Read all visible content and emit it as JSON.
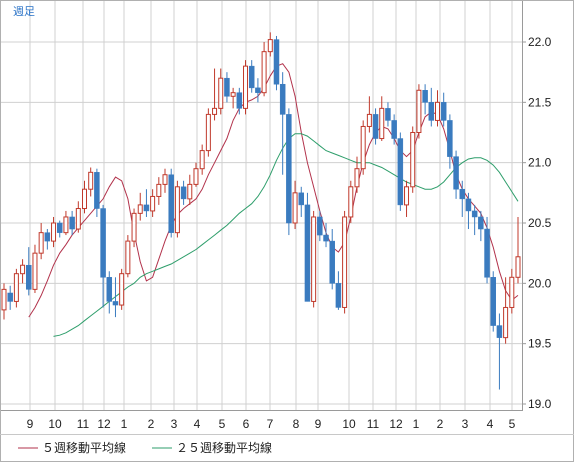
{
  "period_label": "週足",
  "colors": {
    "up": "#c0392b",
    "down": "#3a7bbf",
    "ma5": "#b2324b",
    "ma25": "#2e9e6b",
    "grid": "#d0d0d0",
    "period": "#2a73c7"
  },
  "legend": [
    {
      "label": "５週移動平均線",
      "color": "#b2324b"
    },
    {
      "label": "２５週移動平均線",
      "color": "#2e9e6b"
    }
  ],
  "chart_data": {
    "type": "candlestick",
    "title": "",
    "ylim": [
      19.0,
      22.3
    ],
    "y_ticks": [
      "22.0",
      "21.5",
      "21.0",
      "20.5",
      "20.0",
      "19.5",
      "19.0"
    ],
    "x_ticks": [
      "9",
      "10",
      "11",
      "12",
      "1",
      "2",
      "3",
      "4",
      "5",
      "6",
      "7",
      "8",
      "9",
      "10",
      "11",
      "12",
      "1",
      "2",
      "3",
      "4",
      "5"
    ],
    "series": [
      {
        "name": "５週移動平均線",
        "values": [
          19.72,
          19.8,
          19.9,
          20.02,
          20.15,
          20.25,
          20.32,
          20.4,
          20.46,
          20.52,
          20.58,
          20.64,
          20.7,
          20.8,
          20.88,
          20.85,
          20.7,
          20.42,
          20.18,
          20.02,
          20.05,
          20.2,
          20.35,
          20.48,
          20.57,
          20.62,
          20.66,
          20.7,
          20.78,
          20.9,
          21.0,
          21.1,
          21.2,
          21.35,
          21.45,
          21.5,
          21.52,
          21.55,
          21.62,
          21.72,
          21.8,
          21.82,
          21.75,
          21.55,
          21.25,
          21.0,
          20.8,
          20.6,
          20.42,
          20.3,
          20.26,
          20.34,
          20.55,
          20.8,
          21.0,
          21.15,
          21.25,
          21.3,
          21.28,
          21.2,
          21.1,
          21.05,
          21.1,
          21.25,
          21.38,
          21.42,
          21.4,
          21.28,
          21.1,
          20.9,
          20.78,
          20.7,
          20.64,
          20.58,
          20.46,
          20.3,
          20.1,
          19.94,
          19.86,
          19.9
        ]
      },
      {
        "name": "２５週移動平均線",
        "values": [
          19.56,
          19.57,
          19.59,
          19.62,
          19.65,
          19.69,
          19.73,
          19.77,
          19.81,
          19.85,
          19.89,
          19.93,
          19.97,
          20.0,
          20.05,
          20.08,
          20.1,
          20.12,
          20.14,
          20.16,
          20.19,
          20.22,
          20.25,
          20.28,
          20.32,
          20.36,
          20.4,
          20.44,
          20.48,
          20.53,
          20.58,
          20.62,
          20.66,
          20.72,
          20.8,
          20.9,
          21.02,
          21.12,
          21.2,
          21.24,
          21.24,
          21.22,
          21.18,
          21.14,
          21.1,
          21.08,
          21.06,
          21.04,
          21.02,
          21.0,
          21.0,
          21.0,
          20.98,
          20.96,
          20.93,
          20.9,
          20.87,
          20.84,
          20.82,
          20.8,
          20.78,
          20.78,
          20.8,
          20.84,
          20.9,
          20.96,
          21.0,
          21.03,
          21.04,
          21.04,
          21.02,
          20.98,
          20.92,
          20.84,
          20.76,
          20.68
        ]
      }
    ],
    "candles": [
      [
        19.78,
        19.95,
        19.7,
        20.0
      ],
      [
        19.92,
        19.85,
        19.78,
        19.98
      ],
      [
        19.85,
        20.08,
        19.8,
        20.12
      ],
      [
        20.08,
        20.15,
        20.0,
        20.2
      ],
      [
        20.15,
        19.95,
        19.9,
        20.3
      ],
      [
        19.95,
        20.25,
        19.92,
        20.32
      ],
      [
        20.25,
        20.42,
        20.2,
        20.5
      ],
      [
        20.42,
        20.35,
        20.28,
        20.45
      ],
      [
        20.35,
        20.5,
        20.3,
        20.55
      ],
      [
        20.5,
        20.42,
        20.38,
        20.52
      ],
      [
        20.42,
        20.55,
        20.4,
        20.6
      ],
      [
        20.55,
        20.45,
        20.4,
        20.6
      ],
      [
        20.45,
        20.62,
        20.42,
        20.68
      ],
      [
        20.62,
        20.78,
        20.58,
        20.85
      ],
      [
        20.78,
        20.92,
        20.72,
        20.96
      ],
      [
        20.92,
        20.62,
        20.55,
        20.95
      ],
      [
        20.62,
        20.05,
        19.8,
        20.65
      ],
      [
        20.05,
        19.85,
        19.75,
        20.1
      ],
      [
        19.85,
        19.82,
        19.72,
        20.05
      ],
      [
        19.82,
        20.08,
        19.78,
        20.12
      ],
      [
        20.08,
        20.35,
        20.05,
        20.4
      ],
      [
        20.35,
        20.58,
        20.3,
        20.62
      ],
      [
        20.58,
        20.65,
        20.52,
        20.75
      ],
      [
        20.65,
        20.6,
        20.55,
        20.78
      ],
      [
        20.6,
        20.72,
        20.55,
        20.78
      ],
      [
        20.72,
        20.82,
        20.65,
        20.88
      ],
      [
        20.82,
        20.9,
        20.75,
        20.95
      ],
      [
        20.9,
        20.42,
        20.38,
        20.95
      ],
      [
        20.42,
        20.8,
        20.38,
        20.85
      ],
      [
        20.8,
        20.7,
        20.65,
        20.85
      ],
      [
        20.7,
        20.82,
        20.65,
        20.9
      ],
      [
        20.82,
        20.95,
        20.8,
        21.0
      ],
      [
        20.95,
        21.1,
        20.9,
        21.15
      ],
      [
        21.1,
        21.4,
        21.05,
        21.45
      ],
      [
        21.4,
        21.45,
        21.35,
        21.78
      ],
      [
        21.45,
        21.7,
        21.4,
        21.78
      ],
      [
        21.7,
        21.55,
        21.5,
        21.75
      ],
      [
        21.55,
        21.58,
        21.45,
        21.62
      ],
      [
        21.58,
        21.45,
        21.4,
        21.62
      ],
      [
        21.45,
        21.8,
        21.4,
        21.85
      ],
      [
        21.8,
        21.62,
        21.58,
        21.85
      ],
      [
        21.62,
        21.58,
        21.5,
        21.7
      ],
      [
        21.58,
        21.92,
        21.55,
        22.0
      ],
      [
        21.92,
        22.02,
        21.88,
        22.08
      ],
      [
        22.02,
        21.65,
        21.6,
        22.05
      ],
      [
        21.65,
        21.4,
        20.9,
        21.75
      ],
      [
        21.4,
        20.5,
        20.4,
        21.45
      ],
      [
        20.5,
        20.75,
        20.45,
        20.85
      ],
      [
        20.75,
        20.65,
        20.55,
        20.8
      ],
      [
        20.65,
        19.85,
        19.85,
        20.75
      ],
      [
        19.85,
        20.55,
        19.8,
        20.6
      ],
      [
        20.55,
        20.4,
        20.35,
        20.6
      ],
      [
        20.4,
        20.35,
        20.3,
        20.5
      ],
      [
        20.35,
        20.0,
        19.95,
        20.45
      ],
      [
        20.0,
        19.8,
        19.78,
        20.1
      ],
      [
        19.8,
        20.55,
        19.75,
        20.6
      ],
      [
        20.55,
        20.8,
        20.5,
        20.85
      ],
      [
        20.8,
        20.95,
        20.75,
        21.05
      ],
      [
        20.95,
        21.3,
        20.9,
        21.35
      ],
      [
        21.3,
        21.4,
        21.25,
        21.55
      ],
      [
        21.4,
        21.2,
        21.15,
        21.45
      ],
      [
        21.2,
        21.45,
        21.18,
        21.55
      ],
      [
        21.45,
        21.35,
        21.3,
        21.5
      ],
      [
        21.35,
        21.2,
        21.15,
        21.4
      ],
      [
        21.2,
        20.65,
        20.6,
        21.25
      ],
      [
        20.65,
        20.8,
        20.55,
        20.85
      ],
      [
        20.8,
        21.25,
        20.75,
        21.3
      ],
      [
        21.25,
        21.6,
        21.2,
        21.65
      ],
      [
        21.6,
        21.5,
        21.4,
        21.65
      ],
      [
        21.5,
        21.35,
        21.3,
        21.62
      ],
      [
        21.35,
        21.5,
        21.3,
        21.6
      ],
      [
        21.5,
        21.35,
        21.3,
        21.58
      ],
      [
        21.35,
        21.05,
        20.95,
        21.4
      ],
      [
        21.05,
        20.78,
        20.7,
        21.1
      ],
      [
        20.78,
        20.7,
        20.55,
        20.85
      ],
      [
        20.7,
        20.6,
        20.45,
        20.75
      ],
      [
        20.6,
        20.55,
        20.4,
        20.65
      ],
      [
        20.55,
        20.45,
        20.35,
        20.6
      ],
      [
        20.45,
        20.05,
        20.0,
        20.55
      ],
      [
        20.05,
        19.65,
        19.6,
        20.1
      ],
      [
        19.65,
        19.55,
        19.12,
        19.75
      ],
      [
        19.55,
        19.8,
        19.5,
        20.05
      ],
      [
        19.8,
        20.05,
        19.75,
        20.12
      ],
      [
        20.05,
        20.22,
        20.0,
        20.55
      ]
    ]
  }
}
